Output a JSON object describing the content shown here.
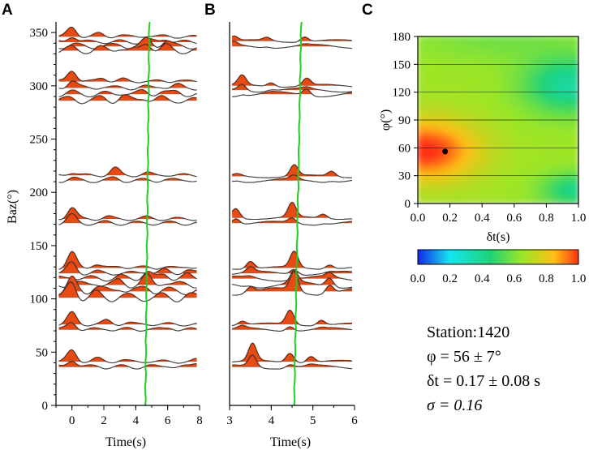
{
  "chart_data": [
    {
      "id": "A",
      "type": "line",
      "panel_label": "A",
      "title": "",
      "xlabel": "Time(s)",
      "ylabel": "Baz(°)",
      "xlim": [
        -1,
        8
      ],
      "ylim": [
        0,
        360
      ],
      "x_ticks": [
        0,
        2,
        4,
        6,
        8
      ],
      "y_ticks": [
        0,
        50,
        100,
        150,
        200,
        250,
        300,
        350
      ],
      "marker_line": {
        "x_at_bottom": 4.6,
        "x_at_top": 4.85,
        "color": "#22cc22"
      },
      "trace_groups": [
        {
          "baz": 337,
          "offsets": [
            9,
            4,
            0,
            -4
          ],
          "peaks": [
            [
              0,
              10
            ],
            [
              1.7,
              4
            ],
            [
              3,
              4
            ],
            [
              4.7,
              9
            ],
            [
              5.9,
              6
            ]
          ]
        },
        {
          "baz": 292,
          "offsets": [
            12,
            6,
            0,
            -6
          ],
          "peaks": [
            [
              0,
              12
            ],
            [
              1.9,
              5
            ],
            [
              3.2,
              5
            ],
            [
              4.5,
              4
            ],
            [
              5.6,
              3
            ],
            [
              6.6,
              3
            ]
          ]
        },
        {
          "baz": 211,
          "offsets": [
            5,
            0
          ],
          "peaks": [
            [
              0,
              3
            ],
            [
              2.7,
              9
            ],
            [
              4.7,
              5
            ],
            [
              5.8,
              5
            ],
            [
              7.3,
              2
            ]
          ]
        },
        {
          "baz": 171,
          "offsets": [
            4,
            0
          ],
          "peaks": [
            [
              0,
              12
            ],
            [
              2.2,
              3
            ],
            [
              4.7,
              4
            ],
            [
              6.5,
              2
            ]
          ]
        },
        {
          "baz": 113,
          "offsets": [
            16,
            11,
            6,
            0,
            -6,
            -12
          ],
          "peaks": [
            [
              0,
              16
            ],
            [
              1.5,
              5
            ],
            [
              3.0,
              5
            ],
            [
              4.7,
              9
            ],
            [
              5.8,
              5
            ],
            [
              7.2,
              4
            ]
          ]
        },
        {
          "baz": 71,
          "offsets": [
            5,
            0
          ],
          "peaks": [
            [
              0,
              12
            ],
            [
              2.2,
              5
            ],
            [
              3.5,
              4
            ],
            [
              4.7,
              5
            ],
            [
              6.2,
              4
            ]
          ]
        },
        {
          "baz": 36,
          "offsets": [
            5,
            0
          ],
          "peaks": [
            [
              0,
              12
            ],
            [
              1.6,
              4
            ],
            [
              3.1,
              4
            ],
            [
              4.7,
              4
            ],
            [
              6.0,
              3
            ],
            [
              7.9,
              5
            ]
          ]
        }
      ]
    },
    {
      "id": "B",
      "type": "line",
      "panel_label": "B",
      "title": "",
      "xlabel": "Time(s)",
      "ylabel": "",
      "xlim": [
        3,
        6
      ],
      "ylim": [
        0,
        360
      ],
      "x_ticks": [
        3,
        4,
        5,
        6
      ],
      "y_ticks": [],
      "marker_line": {
        "x_at_bottom": 4.55,
        "x_at_top": 4.72,
        "color": "#22cc22"
      },
      "trace_groups": [
        {
          "baz": 337,
          "offsets": [
            5,
            0
          ],
          "peaks": [
            [
              3.1,
              5
            ],
            [
              3.9,
              4
            ],
            [
              4.8,
              12
            ]
          ]
        },
        {
          "baz": 292,
          "offsets": [
            8,
            4,
            0
          ],
          "peaks": [
            [
              3.3,
              10
            ],
            [
              4.0,
              5
            ],
            [
              4.85,
              17
            ]
          ]
        },
        {
          "baz": 211,
          "offsets": [
            4,
            0
          ],
          "peaks": [
            [
              3.2,
              2
            ],
            [
              4.55,
              14
            ],
            [
              5.45,
              12
            ]
          ]
        },
        {
          "baz": 171,
          "offsets": [
            5,
            0
          ],
          "peaks": [
            [
              3.15,
              10
            ],
            [
              4.5,
              18
            ],
            [
              5.25,
              10
            ]
          ]
        },
        {
          "baz": 113,
          "offsets": [
            16,
            11,
            6,
            0,
            -6
          ],
          "peaks": [
            [
              3.5,
              8
            ],
            [
              4.55,
              20
            ],
            [
              5.4,
              10
            ]
          ]
        },
        {
          "baz": 71,
          "offsets": [
            5,
            0
          ],
          "peaks": [
            [
              3.3,
              4
            ],
            [
              4.45,
              18
            ],
            [
              5.2,
              12
            ]
          ]
        },
        {
          "baz": 36,
          "offsets": [
            5,
            0
          ],
          "peaks": [
            [
              3.55,
              18
            ],
            [
              4.45,
              12
            ],
            [
              4.95,
              14
            ]
          ]
        }
      ]
    },
    {
      "id": "C",
      "type": "heatmap",
      "panel_label": "C",
      "title": "",
      "xlabel": "δt(s)",
      "ylabel": "φ(°)",
      "xlim": [
        0.0,
        1.0
      ],
      "ylim": [
        0,
        180
      ],
      "x_ticks": [
        "0.0",
        "0.2",
        "0.4",
        "0.6",
        "0.8",
        "1.0"
      ],
      "y_ticks": [
        "0",
        "30",
        "60",
        "90",
        "120",
        "150",
        "180"
      ],
      "grid": true,
      "optimum": {
        "dt": 0.17,
        "phi": 56
      },
      "colorbar": {
        "min": 0.0,
        "max": 1.0,
        "ticks": [
          "0.0",
          "0.2",
          "0.4",
          "0.6",
          "0.8",
          "1.0"
        ],
        "colors": [
          "#1428e6",
          "#14e6f0",
          "#1ed278",
          "#9be628",
          "#ffbe14",
          "#ff3214"
        ]
      }
    }
  ],
  "station": {
    "name": "Station:1420",
    "phi": "φ = 56 ± 7°",
    "dt": "δt = 0.17 ± 0.08 s",
    "sigma": "σ = 0.16"
  },
  "colors": {
    "fill": "#e84a14",
    "trace": "#000000",
    "marker": "#22cc22",
    "grid": "#000000"
  }
}
